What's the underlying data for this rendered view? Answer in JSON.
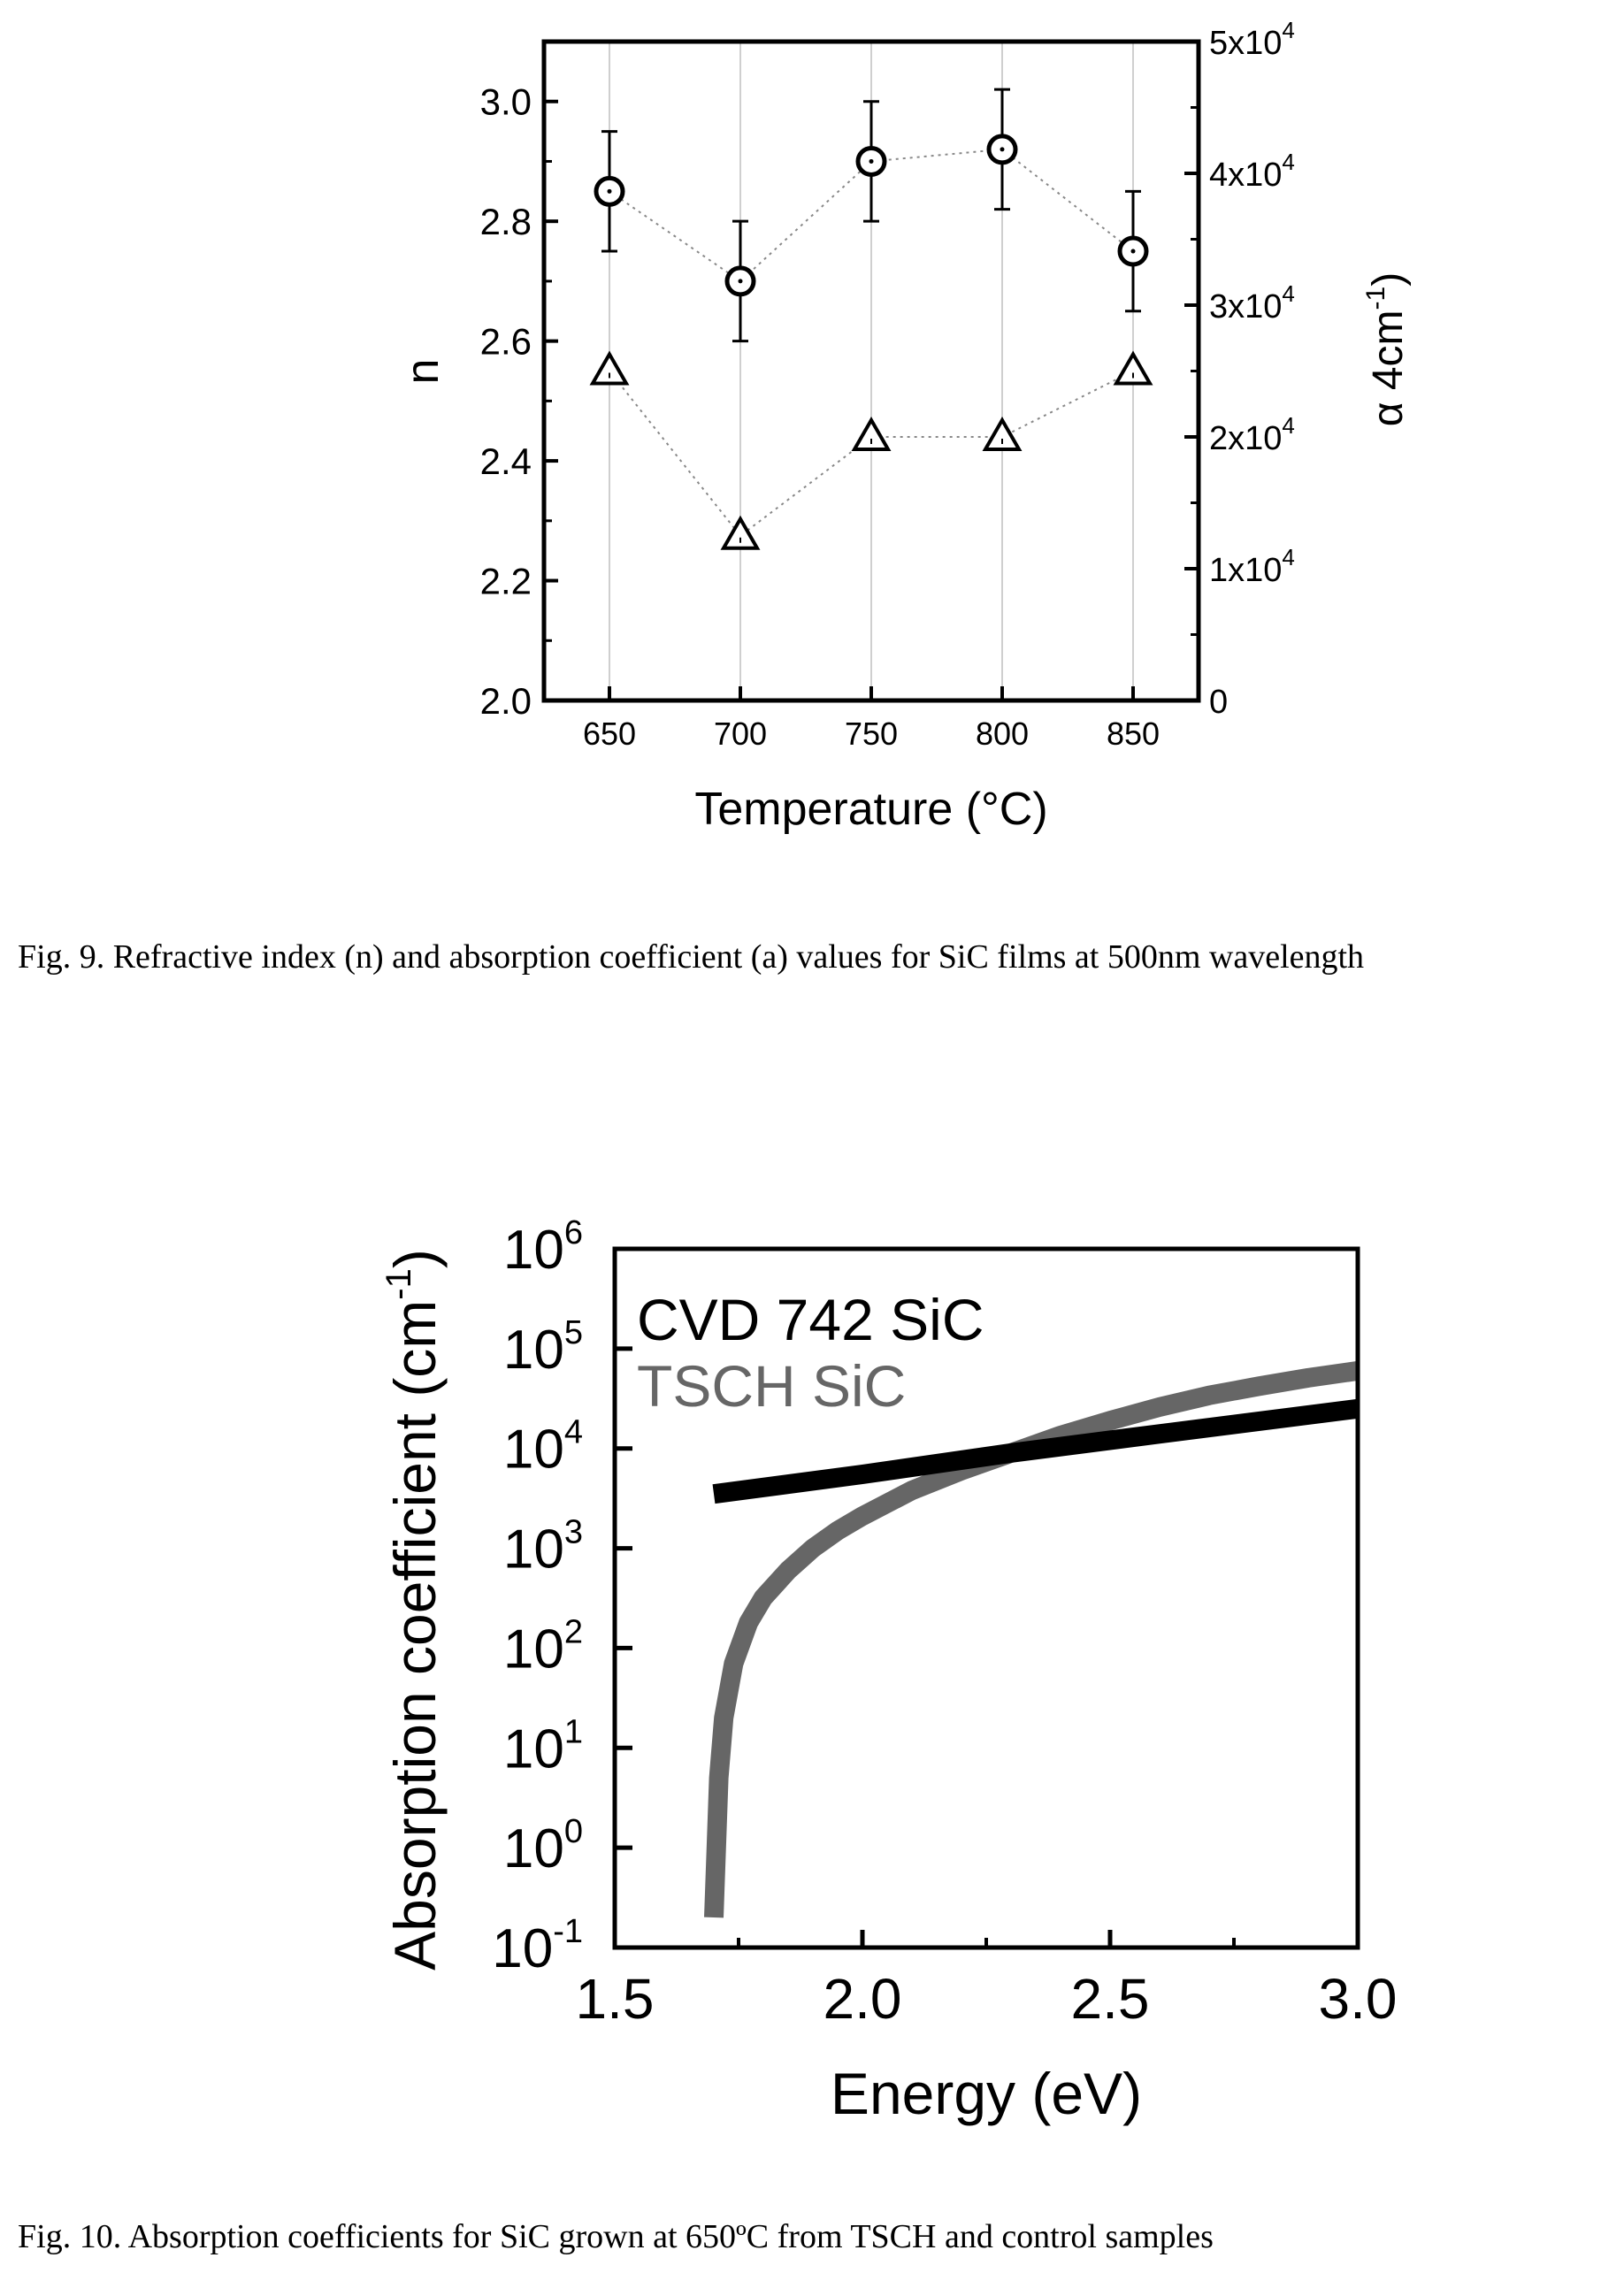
{
  "figures": [
    {
      "caption": "Fig. 9.  Refractive index (n) and absorption coefficient (a) values for SiC films at 500nm wavelength"
    },
    {
      "caption": "Fig. 10.  Absorption coefficients for SiC grown at 650ºC from TSCH and control samples"
    }
  ],
  "chart_data": [
    {
      "type": "scatter",
      "title": "",
      "xlabel": "Temperature (°C)",
      "ylabel": "n",
      "y2label_prefix": "α 4cm",
      "y2label_sup": "-1",
      "y2label_suffix": ")",
      "x": [
        650,
        700,
        750,
        800,
        850
      ],
      "xlim": [
        625,
        875
      ],
      "ylim": [
        2.0,
        3.1
      ],
      "y2lim": [
        0,
        50000
      ],
      "x_ticks": [
        "650",
        "700",
        "750",
        "800",
        "850"
      ],
      "y_ticks": [
        "2.0",
        "2.2",
        "2.4",
        "2.6",
        "2.8",
        "3.0"
      ],
      "y2_ticks": [
        {
          "value": 0,
          "base": "0",
          "exp": ""
        },
        {
          "value": 10000,
          "base": "1x10",
          "exp": "4"
        },
        {
          "value": 20000,
          "base": "2x10",
          "exp": "4"
        },
        {
          "value": 30000,
          "base": "3x10",
          "exp": "4"
        },
        {
          "value": 40000,
          "base": "4x10",
          "exp": "4"
        },
        {
          "value": 50000,
          "base": "5x10",
          "exp": "4"
        }
      ],
      "grid": "vertical",
      "series": [
        {
          "axis": "left",
          "marker": "circle",
          "values": [
            2.85,
            2.7,
            2.9,
            2.92,
            2.75
          ],
          "errors": [
            0.1,
            0.1,
            0.1,
            0.1,
            0.1
          ]
        },
        {
          "axis": "right",
          "marker": "triangle",
          "values": [
            25000,
            12500,
            20000,
            20000,
            25000
          ]
        }
      ]
    },
    {
      "type": "line",
      "title": "",
      "xlabel": "Energy (eV)",
      "ylabel_prefix": "Absorption coefficient (cm",
      "ylabel_sup": "-1",
      "ylabel_suffix": ")",
      "xlim": [
        1.5,
        3.0
      ],
      "y_scale": "log",
      "ylim_exp": [
        -1,
        6
      ],
      "x_ticks": [
        "1.5",
        "2.0",
        "2.5",
        "3.0"
      ],
      "y_ticks": [
        {
          "exp": "-1"
        },
        {
          "exp": "0"
        },
        {
          "exp": "1"
        },
        {
          "exp": "2"
        },
        {
          "exp": "3"
        },
        {
          "exp": "4"
        },
        {
          "exp": "5"
        },
        {
          "exp": "6"
        }
      ],
      "y_tick_base": "10",
      "legend": [
        {
          "label": "CVD 742 SiC",
          "color": "#000000"
        },
        {
          "label": "TSCH SiC",
          "color": "#666666"
        }
      ],
      "legend_position": "top-left",
      "series": [
        {
          "name": "CVD 742 SiC",
          "color": "#000000",
          "x": [
            1.7,
            2.0,
            2.3,
            2.6,
            3.0
          ],
          "y": [
            3500,
            5500,
            9000,
            14000,
            25000
          ]
        },
        {
          "name": "TSCH SiC",
          "color": "#666666",
          "x": [
            1.7,
            1.705,
            1.71,
            1.72,
            1.74,
            1.77,
            1.8,
            1.85,
            1.9,
            1.95,
            2.0,
            2.1,
            2.2,
            2.3,
            2.4,
            2.5,
            2.6,
            2.7,
            2.8,
            2.9,
            3.0
          ],
          "y": [
            0.2,
            1,
            5,
            20,
            70,
            180,
            320,
            600,
            1000,
            1500,
            2100,
            3800,
            6000,
            9000,
            13500,
            19000,
            26000,
            34000,
            42000,
            51000,
            60000
          ]
        }
      ]
    }
  ]
}
